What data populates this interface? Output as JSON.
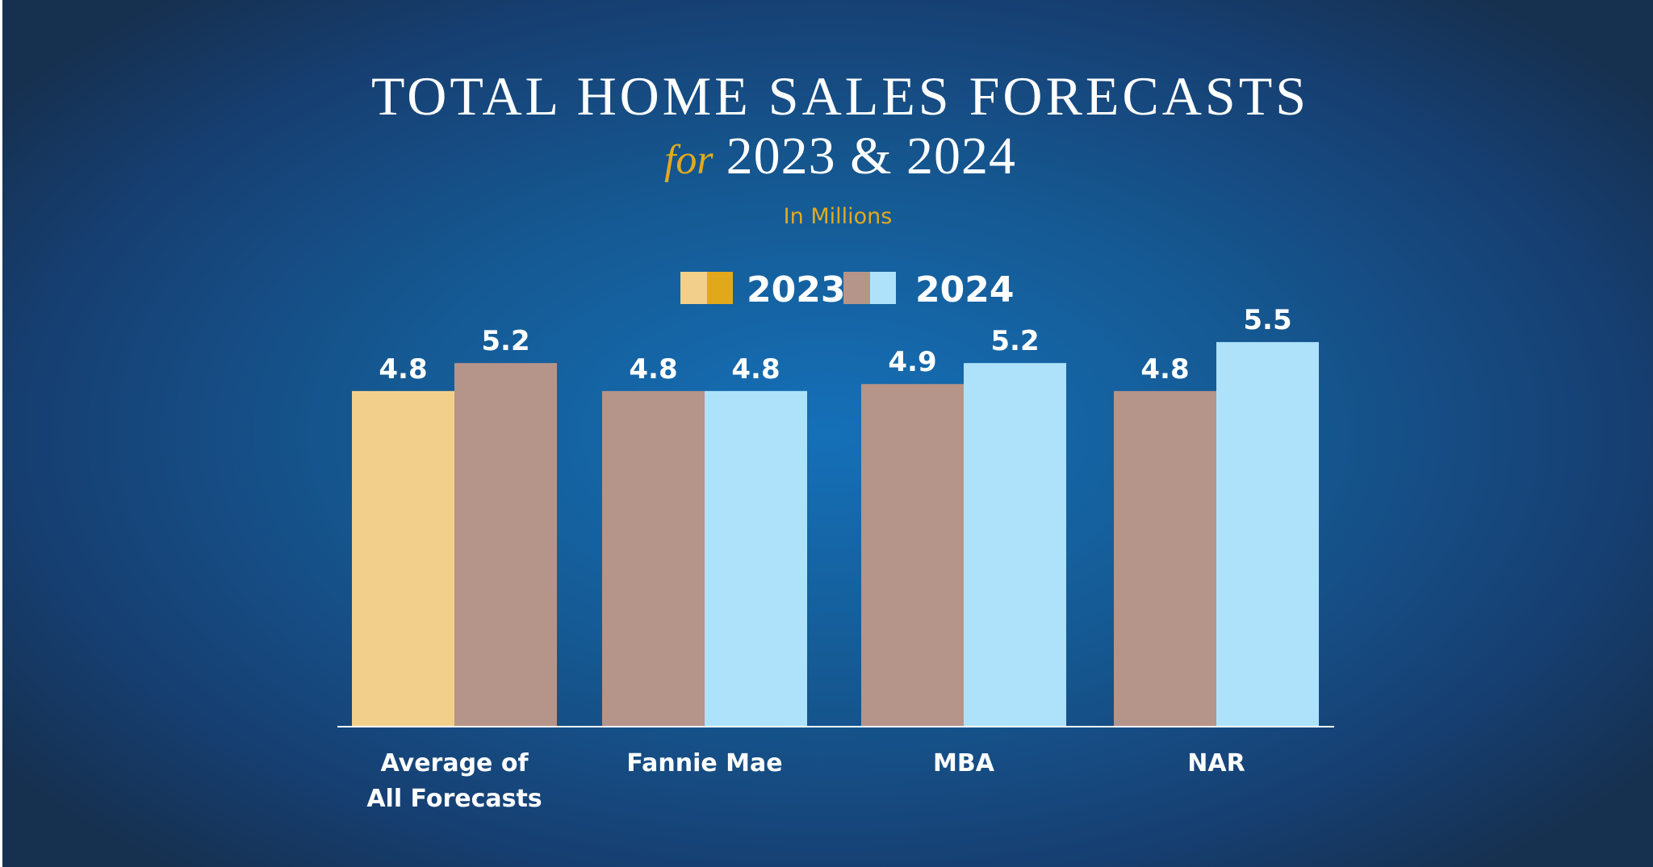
{
  "title": {
    "line1": "TOTAL HOME SALES FORECASTS",
    "for_word": "for",
    "years": "2023 & 2024"
  },
  "subtitle": "In Millions",
  "legend": [
    {
      "label": "2023",
      "swatch_colors": [
        "#f2d08b",
        "#e0a81a"
      ]
    },
    {
      "label": "2024",
      "swatch_colors": [
        "#b5948a",
        "#aee2fa"
      ]
    }
  ],
  "colors": {
    "average_2023": "#f2d08b",
    "average_2024": "#b5948a",
    "bar_2023": "#b5948a",
    "bar_2024": "#aee2fa",
    "axis_line": "#ffffff"
  },
  "chart_data": {
    "type": "bar",
    "categories": [
      "Average of All Forecasts",
      "Fannie Mae",
      "MBA",
      "NAR"
    ],
    "category_label_lines": [
      [
        "Average of",
        "All Forecasts"
      ],
      [
        "Fannie Mae"
      ],
      [
        "MBA"
      ],
      [
        "NAR"
      ]
    ],
    "series": [
      {
        "name": "2023",
        "values": [
          4.8,
          4.8,
          4.9,
          4.8
        ]
      },
      {
        "name": "2024",
        "values": [
          5.2,
          4.8,
          5.2,
          5.5
        ]
      }
    ],
    "value_labels": [
      [
        "4.8",
        "4.8",
        "4.9",
        "4.8"
      ],
      [
        "5.2",
        "4.8",
        "5.2",
        "5.5"
      ]
    ],
    "title": "TOTAL HOME SALES FORECASTS for 2023 & 2024",
    "subtitle": "In Millions",
    "xlabel": "",
    "ylabel": "",
    "ylim": [
      0,
      5.5
    ],
    "grid": false,
    "legend_position": "top-center"
  }
}
